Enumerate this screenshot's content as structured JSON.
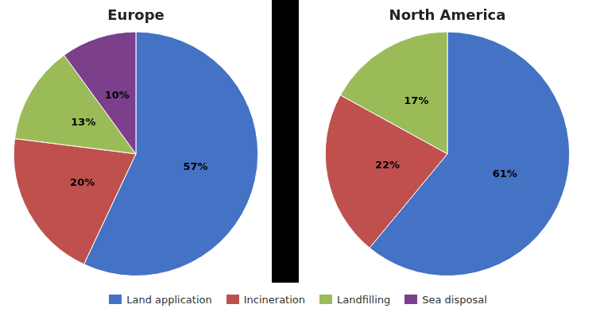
{
  "chart_data": [
    {
      "type": "pie",
      "title": "Europe",
      "categories": [
        "Land application",
        "Incineration",
        "Landfilling",
        "Sea disposal"
      ],
      "values": [
        57,
        20,
        13,
        10
      ],
      "value_labels": [
        "57%",
        "20%",
        "13%",
        "10%"
      ],
      "colors": [
        "#4472c4",
        "#c0504d",
        "#9bbb59",
        "#7b3f8c"
      ],
      "data_labels": true,
      "legend": "bottom"
    },
    {
      "type": "pie",
      "title": "North America",
      "categories": [
        "Land application",
        "Incineration",
        "Landfilling"
      ],
      "values": [
        61,
        22,
        17
      ],
      "value_labels": [
        "61%",
        "22%",
        "17%"
      ],
      "colors": [
        "#4472c4",
        "#c0504d",
        "#9bbb59"
      ],
      "data_labels": true,
      "legend": "bottom"
    }
  ]
}
